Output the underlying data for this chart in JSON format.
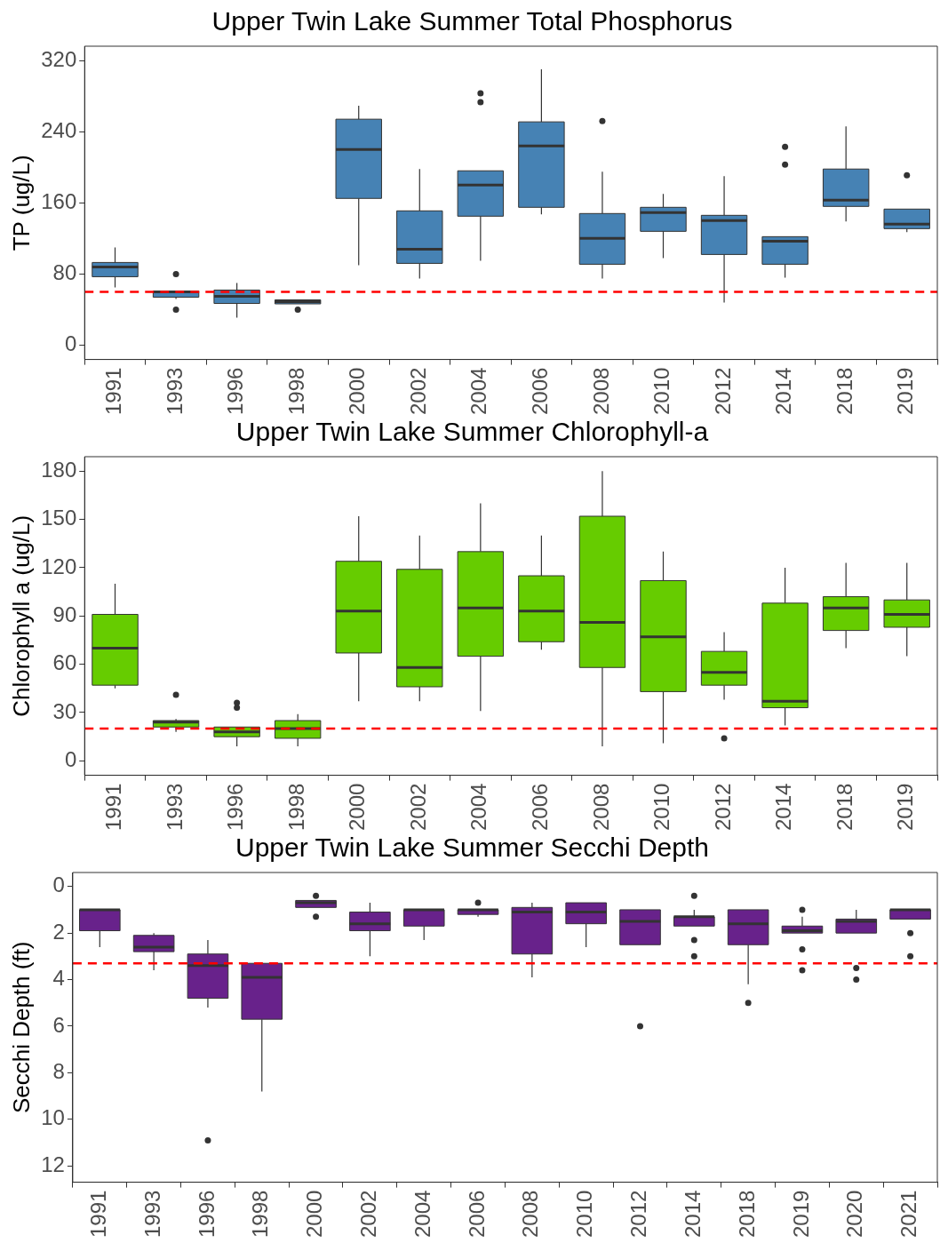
{
  "chart_data": [
    {
      "type": "box",
      "title": "Upper Twin Lake Summer Total Phosphorus",
      "ylabel": "TP (ug/L)",
      "color": "#4682b4",
      "categories": [
        "1991",
        "1993",
        "1996",
        "1998",
        "2000",
        "2002",
        "2004",
        "2006",
        "2008",
        "2010",
        "2012",
        "2014",
        "2018",
        "2019"
      ],
      "ylim": [
        -16,
        336
      ],
      "yticks": [
        0,
        80,
        160,
        240,
        320
      ],
      "grid": false,
      "legend": false,
      "boxes": [
        {
          "low": 65,
          "q1": 77,
          "median": 88,
          "q3": 93,
          "high": 110
        },
        {
          "low": 52,
          "q1": 54,
          "median": 60,
          "q3": 61,
          "high": 61,
          "outliers": [
            80,
            40
          ]
        },
        {
          "low": 31,
          "q1": 47,
          "median": 55,
          "q3": 62,
          "high": 70
        },
        {
          "low": 46.5,
          "q1": 46.5,
          "median": 49,
          "q3": 51,
          "high": 51,
          "outliers": [
            40
          ]
        },
        {
          "low": 90,
          "q1": 165,
          "median": 220,
          "q3": 254,
          "high": 269
        },
        {
          "low": 75,
          "q1": 92,
          "median": 108,
          "q3": 151,
          "high": 198
        },
        {
          "low": 95,
          "q1": 145,
          "median": 180,
          "q3": 196,
          "high": 196,
          "outliers": [
            283,
            273
          ]
        },
        {
          "low": 147,
          "q1": 155,
          "median": 224,
          "q3": 251,
          "high": 310
        },
        {
          "low": 75,
          "q1": 91,
          "median": 120,
          "q3": 148,
          "high": 195,
          "outliers": [
            252
          ]
        },
        {
          "low": 98,
          "q1": 128,
          "median": 149,
          "q3": 155,
          "high": 170
        },
        {
          "low": 48,
          "q1": 102,
          "median": 140,
          "q3": 146,
          "high": 190
        },
        {
          "low": 76,
          "q1": 91,
          "median": 117,
          "q3": 122,
          "high": 122,
          "outliers": [
            223,
            203
          ]
        },
        {
          "low": 139,
          "q1": 156,
          "median": 163,
          "q3": 198,
          "high": 246
        },
        {
          "low": 127,
          "q1": 131,
          "median": 136,
          "q3": 153,
          "high": 153,
          "outliers": [
            191
          ]
        }
      ],
      "ref_lines": [
        {
          "axis": "y",
          "value": 60,
          "color": "#ff0000",
          "line_style": "dashed"
        }
      ]
    },
    {
      "type": "box",
      "title": "Upper Twin Lake Summer Chlorophyll-a",
      "ylabel": "Chlorophyll a (ug/L)",
      "color": "#66cc00",
      "categories": [
        "1991",
        "1993",
        "1996",
        "1998",
        "2000",
        "2002",
        "2004",
        "2006",
        "2008",
        "2010",
        "2012",
        "2014",
        "2018",
        "2019"
      ],
      "ylim": [
        -9,
        189
      ],
      "yticks": [
        0,
        30,
        60,
        90,
        120,
        150,
        180
      ],
      "grid": false,
      "legend": false,
      "boxes": [
        {
          "low": 45,
          "q1": 47,
          "median": 70,
          "q3": 91,
          "high": 110
        },
        {
          "low": 18,
          "q1": 21,
          "median": 24,
          "q3": 25,
          "high": 26,
          "outliers": [
            41
          ]
        },
        {
          "low": 9,
          "q1": 15,
          "median": 18,
          "q3": 21,
          "high": 21,
          "outliers": [
            36,
            33
          ]
        },
        {
          "low": 9,
          "q1": 14,
          "median": 20,
          "q3": 25,
          "high": 29
        },
        {
          "low": 37,
          "q1": 67,
          "median": 93,
          "q3": 124,
          "high": 152
        },
        {
          "low": 37,
          "q1": 46,
          "median": 58,
          "q3": 119,
          "high": 140
        },
        {
          "low": 31,
          "q1": 65,
          "median": 95,
          "q3": 130,
          "high": 160
        },
        {
          "low": 69,
          "q1": 74,
          "median": 93,
          "q3": 115,
          "high": 140
        },
        {
          "low": 9,
          "q1": 58,
          "median": 86,
          "q3": 152,
          "high": 180
        },
        {
          "low": 11,
          "q1": 43,
          "median": 77,
          "q3": 112,
          "high": 130
        },
        {
          "low": 38,
          "q1": 47,
          "median": 55,
          "q3": 68,
          "high": 80,
          "outliers": [
            14
          ]
        },
        {
          "low": 22,
          "q1": 33,
          "median": 37,
          "q3": 98,
          "high": 120
        },
        {
          "low": 70,
          "q1": 81,
          "median": 95,
          "q3": 102,
          "high": 123
        },
        {
          "low": 65,
          "q1": 83,
          "median": 91,
          "q3": 100,
          "high": 123
        }
      ],
      "ref_lines": [
        {
          "axis": "y",
          "value": 20,
          "color": "#ff0000",
          "line_style": "dashed"
        }
      ]
    },
    {
      "type": "box",
      "title": "Upper Twin Lake Summer Secchi Depth",
      "ylabel": "Secchi Depth (ft)",
      "color": "#68228b",
      "categories": [
        "1991",
        "1993",
        "1996",
        "1998",
        "2000",
        "2002",
        "2004",
        "2006",
        "2008",
        "2010",
        "2012",
        "2014",
        "2018",
        "2019",
        "2020",
        "2021"
      ],
      "ylim": [
        12.7,
        -0.6
      ],
      "yticks": [
        0,
        2,
        4,
        6,
        8,
        10,
        12
      ],
      "grid": false,
      "legend": false,
      "boxes": [
        {
          "low": 1.0,
          "q1": 1.0,
          "median": 1.0,
          "q3": 1.9,
          "high": 2.6
        },
        {
          "low": 2.0,
          "q1": 2.1,
          "median": 2.6,
          "q3": 2.8,
          "high": 3.6
        },
        {
          "low": 2.3,
          "q1": 2.9,
          "median": 3.4,
          "q3": 4.8,
          "high": 5.2,
          "outliers": [
            10.9
          ]
        },
        {
          "low": 3.3,
          "q1": 3.3,
          "median": 3.9,
          "q3": 5.7,
          "high": 8.8
        },
        {
          "low": 0.6,
          "q1": 0.6,
          "median": 0.7,
          "q3": 0.9,
          "high": 0.9,
          "outliers": [
            0.4,
            1.3
          ]
        },
        {
          "low": 0.7,
          "q1": 1.1,
          "median": 1.6,
          "q3": 1.9,
          "high": 3.0
        },
        {
          "low": 1.0,
          "q1": 1.0,
          "median": 1.0,
          "q3": 1.7,
          "high": 2.3
        },
        {
          "low": 1.0,
          "q1": 1.0,
          "median": 1.0,
          "q3": 1.2,
          "high": 1.3,
          "outliers": [
            0.7
          ]
        },
        {
          "low": 0.7,
          "q1": 0.9,
          "median": 1.1,
          "q3": 2.9,
          "high": 3.9
        },
        {
          "low": 0.7,
          "q1": 0.7,
          "median": 1.1,
          "q3": 1.6,
          "high": 2.6
        },
        {
          "low": 1.0,
          "q1": 1.0,
          "median": 1.5,
          "q3": 2.5,
          "high": 2.5,
          "outliers": [
            6.0
          ]
        },
        {
          "low": 1.0,
          "q1": 1.3,
          "median": 1.3,
          "q3": 1.7,
          "high": 1.7,
          "outliers": [
            0.4,
            2.3,
            3.0
          ]
        },
        {
          "low": 1.0,
          "q1": 1.0,
          "median": 1.6,
          "q3": 2.5,
          "high": 4.2,
          "outliers": [
            5.0
          ]
        },
        {
          "low": 1.3,
          "q1": 1.7,
          "median": 1.9,
          "q3": 2.0,
          "high": 2.0,
          "outliers": [
            1.0,
            2.7,
            3.6
          ]
        },
        {
          "low": 1.0,
          "q1": 1.4,
          "median": 1.5,
          "q3": 2.0,
          "high": 2.0,
          "outliers": [
            3.5,
            4.0
          ]
        },
        {
          "low": 1.0,
          "q1": 1.0,
          "median": 1.0,
          "q3": 1.4,
          "high": 1.4,
          "outliers": [
            2.0,
            3.0
          ]
        }
      ],
      "ref_lines": [
        {
          "axis": "y",
          "value": 3.3,
          "color": "#ff0000",
          "line_style": "dashed"
        }
      ]
    }
  ]
}
